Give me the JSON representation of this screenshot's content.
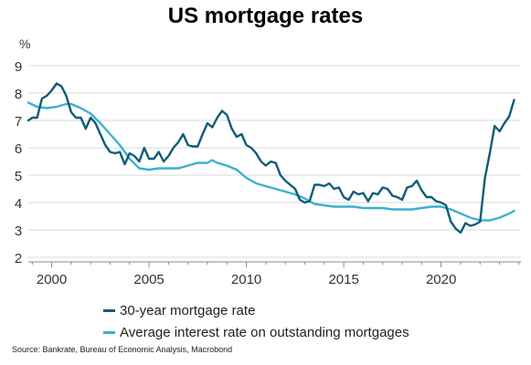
{
  "chart_data": {
    "type": "line",
    "title": "US mortgage rates",
    "unit_label": "%",
    "xlim": [
      1998.8,
      2024.1
    ],
    "ylim": [
      2,
      9
    ],
    "x_ticks": [
      2000,
      2005,
      2010,
      2015,
      2020
    ],
    "y_ticks": [
      2,
      3,
      4,
      5,
      6,
      7,
      8,
      9
    ],
    "grid": "horizontal",
    "legend_position": "bottom",
    "source": "Source: Bankrate, Bureau of Economic Analysis, Macrobond",
    "series": [
      {
        "name": "30-year mortgage rate",
        "color": "#0f5c78",
        "points": [
          [
            1998.8,
            7.0
          ],
          [
            1999.0,
            7.1
          ],
          [
            1999.25,
            7.1
          ],
          [
            1999.5,
            7.8
          ],
          [
            1999.75,
            7.9
          ],
          [
            2000.0,
            8.1
          ],
          [
            2000.25,
            8.35
          ],
          [
            2000.5,
            8.25
          ],
          [
            2000.75,
            7.9
          ],
          [
            2001.0,
            7.3
          ],
          [
            2001.25,
            7.1
          ],
          [
            2001.5,
            7.1
          ],
          [
            2001.75,
            6.7
          ],
          [
            2002.0,
            7.1
          ],
          [
            2002.25,
            6.9
          ],
          [
            2002.5,
            6.5
          ],
          [
            2002.75,
            6.1
          ],
          [
            2003.0,
            5.85
          ],
          [
            2003.25,
            5.8
          ],
          [
            2003.5,
            5.85
          ],
          [
            2003.75,
            5.4
          ],
          [
            2004.0,
            5.8
          ],
          [
            2004.25,
            5.7
          ],
          [
            2004.5,
            5.5
          ],
          [
            2004.75,
            6.0
          ],
          [
            2005.0,
            5.6
          ],
          [
            2005.25,
            5.6
          ],
          [
            2005.5,
            5.85
          ],
          [
            2005.75,
            5.5
          ],
          [
            2006.0,
            5.7
          ],
          [
            2006.25,
            6.0
          ],
          [
            2006.5,
            6.2
          ],
          [
            2006.75,
            6.5
          ],
          [
            2007.0,
            6.1
          ],
          [
            2007.25,
            6.05
          ],
          [
            2007.5,
            6.05
          ],
          [
            2007.75,
            6.5
          ],
          [
            2008.0,
            6.9
          ],
          [
            2008.25,
            6.75
          ],
          [
            2008.5,
            7.1
          ],
          [
            2008.75,
            7.35
          ],
          [
            2009.0,
            7.2
          ],
          [
            2009.25,
            6.7
          ],
          [
            2009.5,
            6.4
          ],
          [
            2009.75,
            6.5
          ],
          [
            2010.0,
            6.1
          ],
          [
            2010.25,
            6.0
          ],
          [
            2010.5,
            5.8
          ],
          [
            2010.75,
            5.5
          ],
          [
            2011.0,
            5.35
          ],
          [
            2011.25,
            5.5
          ],
          [
            2011.5,
            5.45
          ],
          [
            2011.75,
            5.0
          ],
          [
            2012.0,
            4.8
          ],
          [
            2012.25,
            4.65
          ],
          [
            2012.5,
            4.5
          ],
          [
            2012.75,
            4.1
          ],
          [
            2013.0,
            4.0
          ],
          [
            2013.25,
            4.05
          ],
          [
            2013.5,
            4.65
          ],
          [
            2013.75,
            4.65
          ],
          [
            2014.0,
            4.6
          ],
          [
            2014.25,
            4.7
          ],
          [
            2014.5,
            4.5
          ],
          [
            2014.75,
            4.55
          ],
          [
            2015.0,
            4.2
          ],
          [
            2015.25,
            4.1
          ],
          [
            2015.5,
            4.4
          ],
          [
            2015.75,
            4.3
          ],
          [
            2016.0,
            4.35
          ],
          [
            2016.25,
            4.05
          ],
          [
            2016.5,
            4.35
          ],
          [
            2016.75,
            4.3
          ],
          [
            2017.0,
            4.55
          ],
          [
            2017.25,
            4.5
          ],
          [
            2017.5,
            4.25
          ],
          [
            2017.75,
            4.2
          ],
          [
            2018.0,
            4.1
          ],
          [
            2018.25,
            4.55
          ],
          [
            2018.5,
            4.6
          ],
          [
            2018.75,
            4.8
          ],
          [
            2019.0,
            4.45
          ],
          [
            2019.25,
            4.2
          ],
          [
            2019.5,
            4.2
          ],
          [
            2019.75,
            4.05
          ],
          [
            2020.0,
            4.0
          ],
          [
            2020.25,
            3.9
          ],
          [
            2020.5,
            3.3
          ],
          [
            2020.75,
            3.05
          ],
          [
            2021.0,
            2.9
          ],
          [
            2021.25,
            3.25
          ],
          [
            2021.5,
            3.15
          ],
          [
            2021.75,
            3.2
          ],
          [
            2022.0,
            3.3
          ],
          [
            2022.25,
            4.9
          ],
          [
            2022.5,
            5.8
          ],
          [
            2022.75,
            6.8
          ],
          [
            2023.0,
            6.6
          ],
          [
            2023.25,
            6.9
          ],
          [
            2023.5,
            7.15
          ],
          [
            2023.75,
            7.75
          ]
        ]
      },
      {
        "name": "Average interest rate on outstanding mortgages",
        "color": "#3bb1cf",
        "points": [
          [
            1998.8,
            7.65
          ],
          [
            1999.25,
            7.5
          ],
          [
            1999.75,
            7.45
          ],
          [
            2000.25,
            7.5
          ],
          [
            2000.75,
            7.6
          ],
          [
            2001.0,
            7.6
          ],
          [
            2001.5,
            7.45
          ],
          [
            2002.0,
            7.25
          ],
          [
            2002.5,
            6.9
          ],
          [
            2003.0,
            6.5
          ],
          [
            2003.5,
            6.1
          ],
          [
            2004.0,
            5.6
          ],
          [
            2004.5,
            5.25
          ],
          [
            2005.0,
            5.2
          ],
          [
            2005.5,
            5.25
          ],
          [
            2006.0,
            5.25
          ],
          [
            2006.5,
            5.25
          ],
          [
            2007.0,
            5.35
          ],
          [
            2007.5,
            5.45
          ],
          [
            2008.0,
            5.45
          ],
          [
            2008.25,
            5.55
          ],
          [
            2008.5,
            5.45
          ],
          [
            2009.0,
            5.35
          ],
          [
            2009.5,
            5.2
          ],
          [
            2010.0,
            4.9
          ],
          [
            2010.5,
            4.7
          ],
          [
            2011.0,
            4.6
          ],
          [
            2011.5,
            4.5
          ],
          [
            2012.0,
            4.4
          ],
          [
            2012.5,
            4.3
          ],
          [
            2013.0,
            4.15
          ],
          [
            2013.5,
            3.95
          ],
          [
            2014.0,
            3.9
          ],
          [
            2014.5,
            3.85
          ],
          [
            2015.0,
            3.85
          ],
          [
            2015.5,
            3.85
          ],
          [
            2016.0,
            3.8
          ],
          [
            2016.5,
            3.8
          ],
          [
            2017.0,
            3.8
          ],
          [
            2017.5,
            3.75
          ],
          [
            2018.0,
            3.75
          ],
          [
            2018.5,
            3.75
          ],
          [
            2019.0,
            3.8
          ],
          [
            2019.5,
            3.85
          ],
          [
            2020.0,
            3.85
          ],
          [
            2020.5,
            3.75
          ],
          [
            2021.0,
            3.6
          ],
          [
            2021.5,
            3.45
          ],
          [
            2022.0,
            3.35
          ],
          [
            2022.5,
            3.35
          ],
          [
            2023.0,
            3.45
          ],
          [
            2023.5,
            3.6
          ],
          [
            2023.75,
            3.7
          ]
        ]
      }
    ]
  }
}
